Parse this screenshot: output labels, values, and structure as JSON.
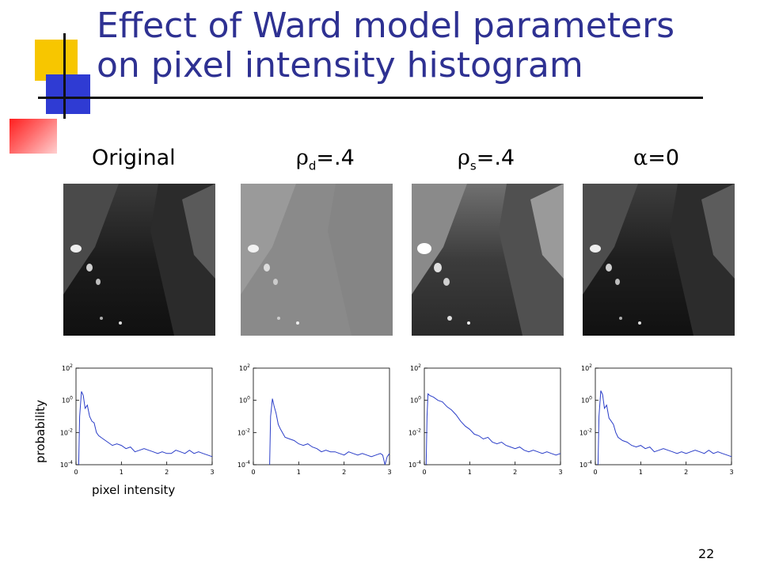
{
  "slide": {
    "title_line1": "Effect of Ward model parameters",
    "title_line2": "on pixel intensity histogram",
    "page_number": "22",
    "colors": {
      "title": "#2e3192",
      "accent_yellow": "#f7c600",
      "accent_blue": "#2f3bd3",
      "accent_red": "#ff1e1e"
    }
  },
  "panels": [
    {
      "label_text": "Original"
    },
    {
      "label_symbol": "ρ",
      "label_sub": "d",
      "label_text": "=.4"
    },
    {
      "label_symbol": "ρ",
      "label_sub": "s",
      "label_text": "=.4"
    },
    {
      "label_symbol": "α",
      "label_text": "=0"
    }
  ],
  "axes": {
    "ylabel": "probability",
    "xlabel": "pixel intensity"
  },
  "chart_data": [
    {
      "type": "line",
      "xlim": [
        0,
        3
      ],
      "x_ticks": [
        "0",
        "1",
        "2",
        "3"
      ],
      "ylim": [
        -4,
        2
      ],
      "y_scale": "log",
      "y_ticks": [
        "10^2",
        "10^0",
        "10^-2",
        "10^-4"
      ],
      "series": [
        {
          "color": "#2b3ec8",
          "x": [
            0.06,
            0.08,
            0.12,
            0.16,
            0.2,
            0.25,
            0.3,
            0.35,
            0.4,
            0.45,
            0.5,
            0.6,
            0.7,
            0.8,
            0.9,
            1.0,
            1.1,
            1.2,
            1.3,
            1.4,
            1.5,
            1.6,
            1.7,
            1.8,
            1.9,
            2.0,
            2.1,
            2.2,
            2.3,
            2.4,
            2.5,
            2.6,
            2.7,
            2.8,
            2.9,
            3.0
          ],
          "y": [
            -4,
            -1.0,
            0.55,
            0.3,
            -0.5,
            -0.3,
            -1.0,
            -1.3,
            -1.4,
            -2.0,
            -2.2,
            -2.4,
            -2.6,
            -2.8,
            -2.7,
            -2.8,
            -3.0,
            -2.9,
            -3.2,
            -3.1,
            -3.0,
            -3.1,
            -3.2,
            -3.3,
            -3.2,
            -3.3,
            -3.3,
            -3.1,
            -3.2,
            -3.3,
            -3.1,
            -3.3,
            -3.2,
            -3.3,
            -3.4,
            -3.5
          ]
        }
      ]
    },
    {
      "type": "line",
      "xlim": [
        0,
        3
      ],
      "x_ticks": [
        "0",
        "1",
        "2",
        "3"
      ],
      "ylim": [
        -4,
        2
      ],
      "y_scale": "log",
      "y_ticks": [
        "10^2",
        "10^0",
        "10^-2",
        "10^-4"
      ],
      "series": [
        {
          "color": "#2b3ec8",
          "x": [
            0.36,
            0.38,
            0.42,
            0.46,
            0.5,
            0.55,
            0.6,
            0.7,
            0.8,
            0.9,
            1.0,
            1.1,
            1.2,
            1.3,
            1.4,
            1.5,
            1.6,
            1.7,
            1.8,
            1.9,
            2.0,
            2.1,
            2.2,
            2.3,
            2.4,
            2.5,
            2.6,
            2.7,
            2.8,
            2.85,
            2.9,
            2.95,
            3.0
          ],
          "y": [
            -4,
            -1.0,
            0.1,
            -0.4,
            -0.8,
            -1.5,
            -1.8,
            -2.3,
            -2.4,
            -2.5,
            -2.7,
            -2.8,
            -2.7,
            -2.9,
            -3.0,
            -3.2,
            -3.1,
            -3.2,
            -3.2,
            -3.3,
            -3.4,
            -3.2,
            -3.3,
            -3.4,
            -3.3,
            -3.4,
            -3.5,
            -3.4,
            -3.3,
            -3.4,
            -4,
            -3.5,
            -3.3
          ]
        }
      ]
    },
    {
      "type": "line",
      "xlim": [
        0,
        3
      ],
      "x_ticks": [
        "0",
        "1",
        "2",
        "3"
      ],
      "ylim": [
        -4,
        2
      ],
      "y_scale": "log",
      "y_ticks": [
        "10^2",
        "10^0",
        "10^-2",
        "10^-4"
      ],
      "series": [
        {
          "color": "#2b3ec8",
          "x": [
            0.04,
            0.06,
            0.08,
            0.12,
            0.2,
            0.3,
            0.4,
            0.5,
            0.6,
            0.7,
            0.8,
            0.9,
            1.0,
            1.1,
            1.2,
            1.3,
            1.4,
            1.5,
            1.6,
            1.7,
            1.8,
            1.9,
            2.0,
            2.1,
            2.2,
            2.3,
            2.4,
            2.5,
            2.6,
            2.7,
            2.8,
            2.9,
            3.0
          ],
          "y": [
            -4,
            -1.0,
            0.4,
            0.3,
            0.2,
            0.0,
            -0.1,
            -0.4,
            -0.6,
            -0.9,
            -1.3,
            -1.6,
            -1.8,
            -2.1,
            -2.2,
            -2.4,
            -2.3,
            -2.6,
            -2.7,
            -2.6,
            -2.8,
            -2.9,
            -3.0,
            -2.9,
            -3.1,
            -3.2,
            -3.1,
            -3.2,
            -3.3,
            -3.2,
            -3.3,
            -3.4,
            -3.3
          ]
        }
      ]
    },
    {
      "type": "line",
      "xlim": [
        0,
        3
      ],
      "x_ticks": [
        "0",
        "1",
        "2",
        "3"
      ],
      "ylim": [
        -4,
        2
      ],
      "y_scale": "log",
      "y_ticks": [
        "10^2",
        "10^0",
        "10^-2",
        "10^-4"
      ],
      "series": [
        {
          "color": "#2b3ec8",
          "x": [
            0.06,
            0.08,
            0.12,
            0.16,
            0.2,
            0.25,
            0.3,
            0.35,
            0.4,
            0.45,
            0.5,
            0.6,
            0.7,
            0.8,
            0.9,
            1.0,
            1.1,
            1.2,
            1.3,
            1.4,
            1.5,
            1.6,
            1.7,
            1.8,
            1.9,
            2.0,
            2.1,
            2.2,
            2.3,
            2.4,
            2.5,
            2.6,
            2.7,
            2.8,
            2.9,
            3.0
          ],
          "y": [
            -4,
            -1.0,
            0.6,
            0.35,
            -0.5,
            -0.3,
            -1.1,
            -1.3,
            -1.5,
            -2.0,
            -2.3,
            -2.5,
            -2.6,
            -2.8,
            -2.9,
            -2.8,
            -3.0,
            -2.9,
            -3.2,
            -3.1,
            -3.0,
            -3.1,
            -3.2,
            -3.3,
            -3.2,
            -3.3,
            -3.2,
            -3.1,
            -3.2,
            -3.3,
            -3.1,
            -3.3,
            -3.2,
            -3.3,
            -3.4,
            -3.5
          ]
        }
      ]
    }
  ]
}
